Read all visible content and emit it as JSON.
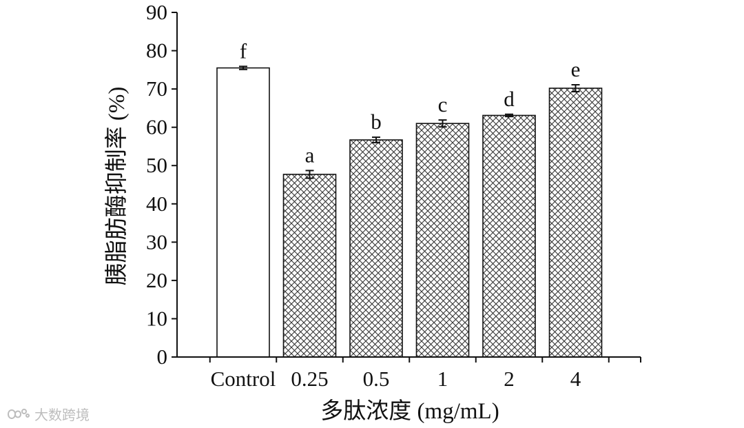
{
  "watermark": {
    "text": "大数跨境",
    "icon": "watermark-logo-icon"
  },
  "chart_data": {
    "type": "bar",
    "title": "",
    "xlabel": "多肽浓度 (mg/mL)",
    "ylabel": "胰脂肪酶抑制率 (%)",
    "ylim": [
      0,
      90
    ],
    "yticks": [
      0,
      10,
      20,
      30,
      40,
      50,
      60,
      70,
      80,
      90
    ],
    "grid": false,
    "legend": "none",
    "categories": [
      "Control",
      "0.25",
      "0.5",
      "1",
      "2",
      "4"
    ],
    "series": [
      {
        "values": [
          75.5,
          47.7,
          56.7,
          61.0,
          63.1,
          70.2
        ],
        "errors": [
          0.4,
          1.0,
          0.7,
          0.9,
          0.3,
          0.9
        ],
        "labels": [
          "f",
          "a",
          "b",
          "c",
          "d",
          "e"
        ],
        "fills": [
          "white",
          "crosshatch",
          "crosshatch",
          "crosshatch",
          "crosshatch",
          "crosshatch"
        ]
      }
    ],
    "colors": {
      "axis": "#111111",
      "bar_edge": "#111111",
      "hatch": "#333333",
      "bar_background": "#ffffff"
    }
  }
}
